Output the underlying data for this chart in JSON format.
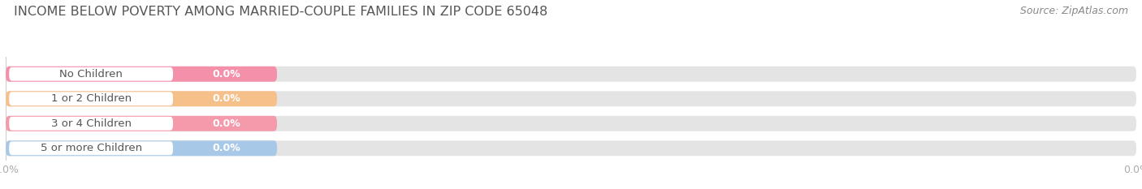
{
  "title": "INCOME BELOW POVERTY AMONG MARRIED-COUPLE FAMILIES IN ZIP CODE 65048",
  "source": "Source: ZipAtlas.com",
  "categories": [
    "No Children",
    "1 or 2 Children",
    "3 or 4 Children",
    "5 or more Children"
  ],
  "values": [
    0.0,
    0.0,
    0.0,
    0.0
  ],
  "bar_colors": [
    "#f590aa",
    "#f5c08a",
    "#f59aaa",
    "#a8c8e8"
  ],
  "bar_bg_color": "#e4e4e4",
  "label_bg_color": "#ffffff",
  "background_color": "#ffffff",
  "title_color": "#555555",
  "label_color": "#555555",
  "source_color": "#888888",
  "tick_color": "#aaaaaa",
  "value_color_inside": "#ffffff",
  "title_fontsize": 11.5,
  "source_fontsize": 9,
  "label_fontsize": 9.5,
  "value_fontsize": 9,
  "tick_fontsize": 9
}
